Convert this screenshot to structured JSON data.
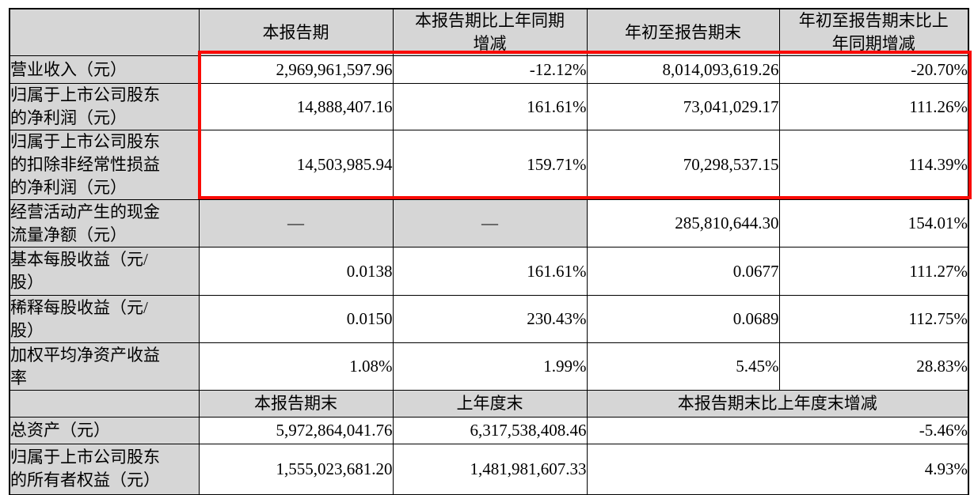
{
  "colors": {
    "highlight_red": "#fa0a05",
    "cell_grey": "#d6d6d6",
    "border_black": "#000000"
  },
  "table": {
    "header": {
      "corner": "",
      "current_period": "本报告期",
      "current_period_yoy": "本报告期比上年同期\n增减",
      "ytd": "年初至报告期末",
      "ytd_yoy": "年初至报告期末比上\n年同期增减"
    },
    "rows": [
      {
        "label": "营业收入（元）",
        "current": "2,969,961,597.96",
        "yoy": "-12.12%",
        "ytd": "8,014,093,619.26",
        "ytd_yoy": "-20.70%"
      },
      {
        "label": "归属于上市公司股东\n的净利润（元）",
        "current": "14,888,407.16",
        "yoy": "161.61%",
        "ytd": "73,041,029.17",
        "ytd_yoy": "111.26%"
      },
      {
        "label": "归属于上市公司股东\n的扣除非经常性损益\n的净利润（元）",
        "current": "14,503,985.94",
        "yoy": "159.71%",
        "ytd": "70,298,537.15",
        "ytd_yoy": "114.39%"
      },
      {
        "label": "经营活动产生的现金\n流量净额（元）",
        "current": "—",
        "yoy": "—",
        "ytd": "285,810,644.30",
        "ytd_yoy": "154.01%"
      },
      {
        "label": "基本每股收益（元/\n股）",
        "current": "0.0138",
        "yoy": "161.61%",
        "ytd": "0.0677",
        "ytd_yoy": "111.27%"
      },
      {
        "label": "稀释每股收益（元/\n股）",
        "current": "0.0150",
        "yoy": "230.43%",
        "ytd": "0.0689",
        "ytd_yoy": "112.75%"
      },
      {
        "label": "加权平均净资产收益\n率",
        "current": "1.08%",
        "yoy": "1.99%",
        "ytd": "5.45%",
        "ytd_yoy": "28.83%"
      }
    ],
    "subheader": {
      "corner": "",
      "period_end": "本报告期末",
      "prev_year_end": "上年度末",
      "period_end_change": "本报告期末比上年度末增减"
    },
    "rows2": [
      {
        "label": "总资产（元）",
        "end_current": "5,972,864,041.76",
        "end_prev": "6,317,538,408.46",
        "change": "-5.46%"
      },
      {
        "label": "归属于上市公司股东\n的所有者权益（元）",
        "end_current": "1,555,023,681.20",
        "end_prev": "1,481,981,607.33",
        "change": "4.93%"
      }
    ]
  }
}
